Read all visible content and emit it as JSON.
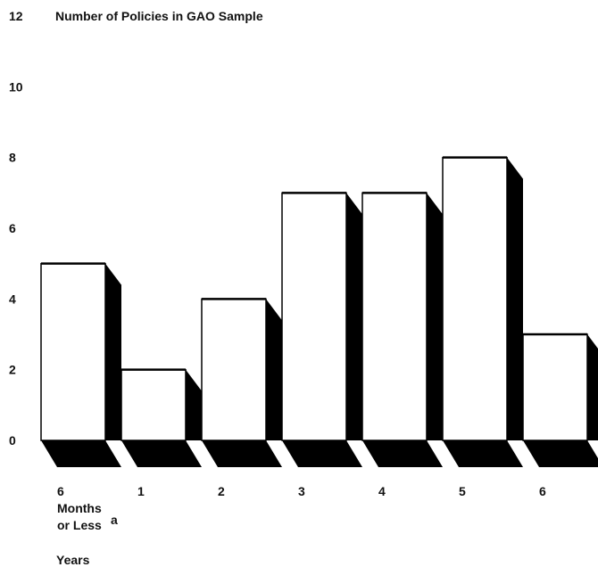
{
  "chart_data": {
    "type": "bar",
    "title": "Number of Policies in GAO Sample",
    "xlabel": "Years",
    "ylabel": "",
    "ylim": [
      0,
      12
    ],
    "yticks": [
      0,
      2,
      4,
      6,
      8,
      10,
      12
    ],
    "categories": [
      {
        "lines": [
          "6",
          "Months",
          "or Less"
        ],
        "sup": "a"
      },
      {
        "lines": [
          "1"
        ],
        "sup": ""
      },
      {
        "lines": [
          "2"
        ],
        "sup": ""
      },
      {
        "lines": [
          "3"
        ],
        "sup": ""
      },
      {
        "lines": [
          "4"
        ],
        "sup": ""
      },
      {
        "lines": [
          "5"
        ],
        "sup": ""
      },
      {
        "lines": [
          "6"
        ],
        "sup": ""
      }
    ],
    "values": [
      5,
      2,
      4,
      7,
      7,
      8,
      3
    ],
    "style": {
      "bar_fill": "#ffffff",
      "bar_edge": "#000000",
      "shadow": "#000000",
      "three_d": true
    }
  }
}
